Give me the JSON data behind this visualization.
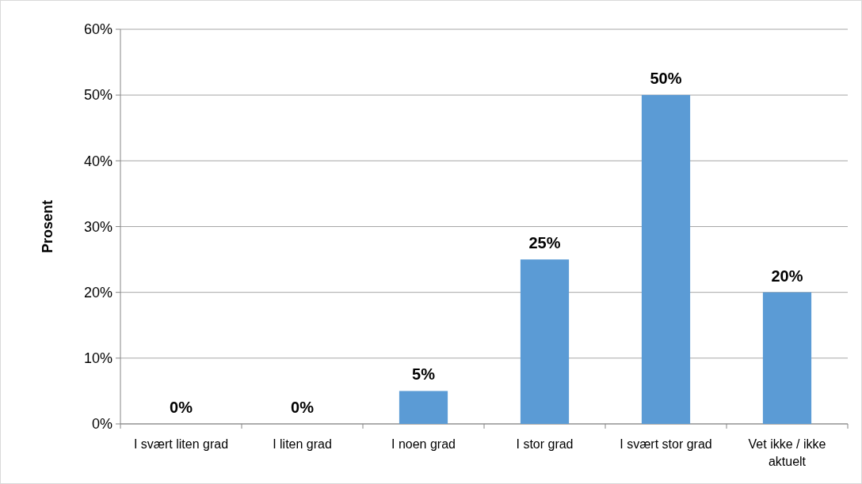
{
  "chart_data": {
    "type": "bar",
    "ylabel": "Prosent",
    "categories": [
      "I svært liten grad",
      "I liten grad",
      "I noen grad",
      "I stor grad",
      "I svært stor grad",
      "Vet ikke / ikke aktuelt"
    ],
    "values": [
      0,
      0,
      5,
      25,
      50,
      20
    ],
    "value_labels": [
      "0%",
      "0%",
      "5%",
      "25%",
      "50%",
      "20%"
    ],
    "color": "#5b9bd5",
    "ylim": [
      0,
      60
    ],
    "yticks": [
      {
        "value": 0,
        "label": "0%"
      },
      {
        "value": 10,
        "label": "10%"
      },
      {
        "value": 20,
        "label": "20%"
      },
      {
        "value": 30,
        "label": "30%"
      },
      {
        "value": 40,
        "label": "40%"
      },
      {
        "value": 50,
        "label": "50%"
      },
      {
        "value": 60,
        "label": "60%"
      }
    ],
    "grid": "y"
  }
}
